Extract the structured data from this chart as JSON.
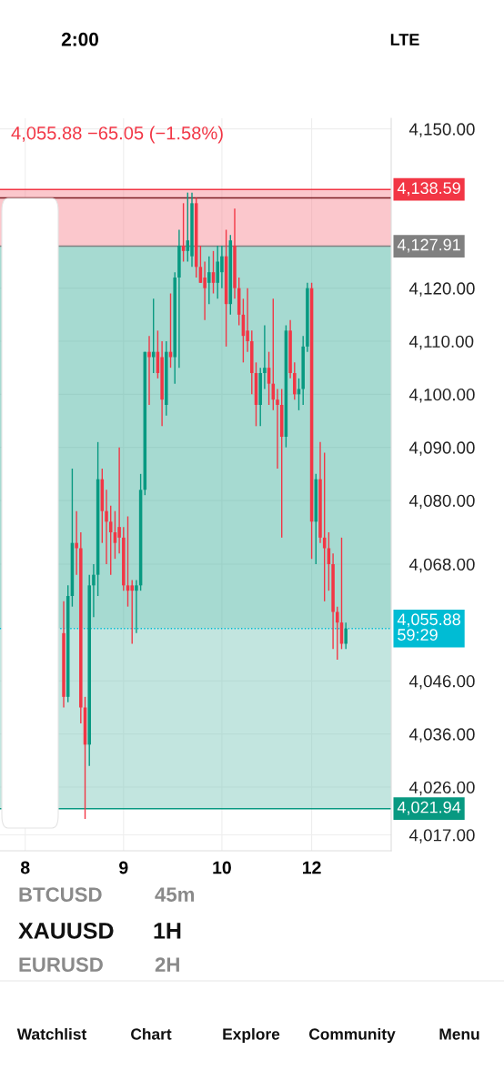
{
  "chart_data": {
    "type": "candlestick",
    "title": "4,055.88 −65.05 (−1.58%)",
    "categories": [
      null,
      null,
      null,
      null,
      null,
      "8",
      null,
      null,
      null,
      null,
      null,
      null,
      null,
      null,
      null,
      null,
      null,
      null,
      null,
      null,
      null,
      null,
      null,
      null,
      null,
      null,
      null,
      null,
      "9",
      null,
      null,
      null,
      null,
      null,
      null,
      null,
      null,
      null,
      null,
      null,
      null,
      null,
      null,
      null,
      null,
      null,
      null,
      null,
      null,
      null,
      null,
      "10",
      null,
      null,
      null,
      null,
      null,
      null,
      null,
      null,
      null,
      null,
      null,
      null,
      null,
      null,
      null,
      null,
      null,
      null,
      null,
      null,
      "12",
      null,
      null,
      null,
      null,
      null,
      null,
      null,
      null,
      null,
      null,
      null,
      null,
      null,
      null,
      null,
      null,
      null,
      null
    ],
    "ohlc": [
      null,
      null,
      null,
      null,
      null,
      null,
      null,
      null,
      null,
      null,
      null,
      null,
      null,
      null,
      [
        4055,
        4061,
        4041,
        4043
      ],
      [
        4043,
        4064,
        4042,
        4062
      ],
      [
        4062,
        4086,
        4060,
        4072
      ],
      [
        4072,
        4078,
        4066,
        4071
      ],
      [
        4071,
        4074,
        4038,
        4041
      ],
      [
        4041,
        4043,
        4020,
        4034
      ],
      [
        4034,
        4066,
        4030,
        4064
      ],
      [
        4064,
        4068,
        4058,
        4066
      ],
      [
        4066,
        4091,
        4062,
        4084
      ],
      [
        4084,
        4086,
        4072,
        4078
      ],
      [
        4078,
        4082,
        4068,
        4076
      ],
      [
        4076,
        4079,
        4066,
        4074
      ],
      [
        4074,
        4078,
        4069,
        4072
      ],
      [
        4075,
        4090,
        4070,
        4073
      ],
      [
        4073,
        4075,
        4063,
        4064
      ],
      [
        4064,
        4077,
        4060,
        4063
      ],
      [
        4064,
        4065,
        4053,
        4063
      ],
      [
        4063,
        4065,
        4055,
        4064
      ],
      [
        4064,
        4085,
        4063,
        4082
      ],
      [
        4082,
        4108,
        4081,
        4108
      ],
      [
        4108,
        4111,
        4098,
        4107
      ],
      [
        4107,
        4118,
        4104,
        4108
      ],
      [
        4108,
        4112,
        4103,
        4104
      ],
      [
        4107,
        4110,
        4094,
        4099
      ],
      [
        4098,
        4110,
        4096,
        4108
      ],
      [
        4108,
        4119,
        4105,
        4107
      ],
      [
        4107,
        4123,
        4102,
        4122
      ],
      [
        4122,
        4131,
        4105,
        4128
      ],
      [
        4128,
        4136,
        4125,
        4127
      ],
      [
        4127,
        4138,
        4125,
        4129
      ],
      [
        4126,
        4138,
        4124,
        4136
      ],
      [
        4136,
        4137,
        4122,
        4124
      ],
      [
        4124,
        4128,
        4121,
        4121
      ],
      [
        4122,
        4125,
        4114,
        4120
      ],
      [
        4121,
        4126,
        4117,
        4123
      ],
      [
        4123,
        4127,
        4119,
        4121
      ],
      [
        4121,
        4128,
        4118,
        4125
      ],
      [
        4123,
        4128,
        4120,
        4126
      ],
      [
        4126,
        4131,
        4109,
        4117
      ],
      [
        4117,
        4130,
        4115,
        4129
      ],
      [
        4128,
        4135,
        4118,
        4120
      ],
      [
        4120,
        4122,
        4113,
        4115
      ],
      [
        4115,
        4118,
        4106,
        4111
      ],
      [
        4112,
        4120,
        4108,
        4110
      ],
      [
        4110,
        4112,
        4100,
        4104
      ],
      [
        4104,
        4106,
        4094,
        4098
      ],
      [
        4098,
        4105,
        4094,
        4104
      ],
      [
        4104,
        4113,
        4101,
        4105
      ],
      [
        4105,
        4108,
        4098,
        4102
      ],
      [
        4102,
        4118,
        4097,
        4099
      ],
      [
        4099,
        4101,
        4086,
        4098
      ],
      [
        4098,
        4101,
        4073,
        4092
      ],
      [
        4092,
        4113,
        4090,
        4112
      ],
      [
        4112,
        4114,
        4103,
        4104
      ],
      [
        4104,
        4106,
        4099,
        4100
      ],
      [
        4100,
        4103,
        4097,
        4101
      ],
      [
        4101,
        4111,
        4098,
        4109
      ],
      [
        4109,
        4121,
        4108,
        4120
      ],
      [
        4120,
        4121,
        4069,
        4076
      ],
      [
        4076,
        4085,
        4068,
        4084
      ],
      [
        4084,
        4091,
        4072,
        4073
      ],
      [
        4073,
        4089,
        4061,
        4071
      ],
      [
        4071,
        4074,
        4063,
        4068
      ],
      [
        4068,
        4070,
        4052,
        4059
      ],
      [
        4059,
        4060,
        4050,
        4057
      ],
      [
        4057,
        4073,
        4052,
        4053
      ],
      [
        4053,
        4057,
        4052,
        4055.88
      ],
      null,
      null,
      null,
      null,
      null,
      null,
      null,
      null,
      null,
      null
    ],
    "colors": [
      null,
      null,
      null,
      null,
      null,
      null,
      null,
      null,
      null,
      null,
      null,
      null,
      null,
      null,
      "#f23645",
      "#089981",
      "#089981",
      "#f23645",
      "#f23645",
      "#f23645",
      "#089981",
      "#089981",
      "#089981",
      "#f23645",
      "#f23645",
      "#f23645",
      "#f23645",
      "#f23645",
      "#f23645",
      "#f23645",
      "#f23645",
      "#089981",
      "#089981",
      "#089981",
      "#f23645",
      "#089981",
      "#f23645",
      "#f23645",
      "#089981",
      "#f23645",
      "#089981",
      "#089981",
      "#f23645",
      "#089981",
      "#089981",
      "#f23645",
      "#f23645",
      "#f23645",
      "#089981",
      "#f23645",
      "#089981",
      "#089981",
      "#f23645",
      "#089981",
      "#f23645",
      "#f23645",
      "#f23645",
      "#f23645",
      "#f23645",
      "#f23645",
      "#089981",
      "#089981",
      "#f23645",
      "#f23645",
      "#f23645",
      "#f23645",
      "#089981",
      "#f23645",
      "#f23645",
      "#089981",
      "#089981",
      "#089981",
      "#f23645",
      "#089981",
      "#f23645",
      "#f23645",
      "#f23645",
      "#f23645",
      "#f23645",
      "#f23645",
      "#089981",
      null,
      null,
      null,
      null,
      null,
      null,
      null,
      null,
      null,
      null
    ],
    "ylim": [
      4014,
      4152
    ],
    "yticks": [
      {
        "value": 4150,
        "label": "4,150.00"
      },
      {
        "value": 4120,
        "label": "4,120.00"
      },
      {
        "value": 4110,
        "label": "4,110.00"
      },
      {
        "value": 4100,
        "label": "4,100.00"
      },
      {
        "value": 4090,
        "label": "4,090.00"
      },
      {
        "value": 4080,
        "label": "4,080.00"
      },
      {
        "value": 4068,
        "label": "4,068.00"
      },
      {
        "value": 4046,
        "label": "4,046.00"
      },
      {
        "value": 4036,
        "label": "4,036.00"
      },
      {
        "value": 4026,
        "label": "4,026.00"
      },
      {
        "value": 4017,
        "label": "4,017.00"
      }
    ],
    "grid": true,
    "bands": [
      {
        "axis": "y",
        "from": 4127.91,
        "to": 4138.59,
        "color": "#f7828f"
      },
      {
        "axis": "y",
        "from": 4055.88,
        "to": 4127.91,
        "color": "#3aae9a"
      },
      {
        "axis": "y",
        "from": 4021.94,
        "to": 4055.88,
        "color": "#77c6b8"
      }
    ],
    "ref_lines": [
      {
        "axis": "y",
        "value": 4137,
        "color": "#7b1f24",
        "line_style": "solid"
      },
      {
        "axis": "y",
        "value": 4138.59,
        "label": "4,138.59",
        "color": "#f23645",
        "line_style": "solid"
      },
      {
        "axis": "y",
        "value": 4127.91,
        "label": "4,127.91",
        "color": "#808080",
        "line_style": "solid"
      },
      {
        "axis": "y",
        "value": 4055.88,
        "label": "4,055.88\n59:29",
        "color": "#00bcd4",
        "line_style": "dotted"
      },
      {
        "axis": "y",
        "value": 4021.94,
        "label": "4,021.94",
        "color": "#089981",
        "line_style": "solid"
      }
    ],
    "annotations": [
      "2:00",
      "LTE",
      "BTCUSD",
      "45m",
      "XAUUSD",
      "1H",
      "EURUSD",
      "2H",
      "Watchlist",
      "Chart",
      "Explore",
      "Community",
      "Menu"
    ]
  }
}
